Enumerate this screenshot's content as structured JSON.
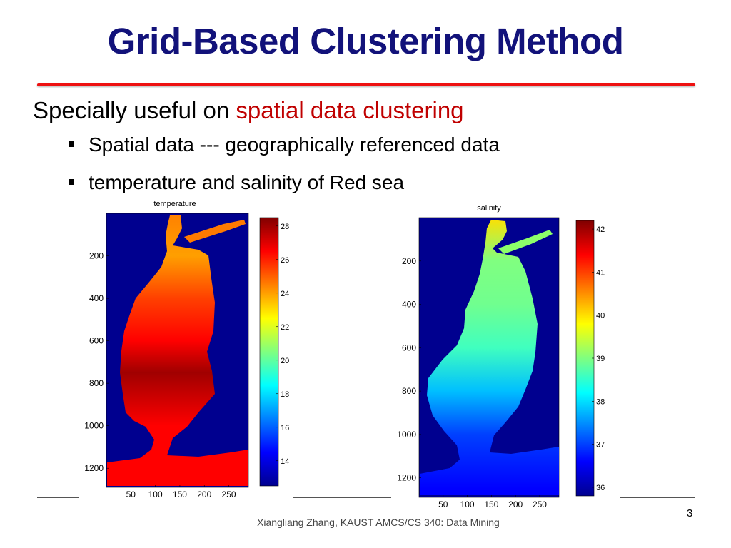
{
  "slide": {
    "title": "Grid-Based Clustering Method",
    "lead_plain": "Specially useful on ",
    "lead_highlight": "spatial data clustering",
    "bullets": [
      "Spatial data --- geographically referenced data",
      "temperature and salinity of Red sea"
    ],
    "footer": "Xiangliang Zhang, KAUST AMCS/CS 340: Data Mining",
    "page_number": "3"
  },
  "colors": {
    "title": "#12127a",
    "highlight": "#c00000",
    "rule": "#ee1111",
    "map_background": "#00008f"
  },
  "chart_data": [
    {
      "type": "heatmap",
      "title": "temperature",
      "x_ticks": [
        "50",
        "100",
        "150",
        "200",
        "250"
      ],
      "y_ticks": [
        "200",
        "400",
        "600",
        "800",
        "1000",
        "1200"
      ],
      "xlim": [
        0,
        290
      ],
      "ylim": [
        0,
        1290
      ],
      "colorbar": {
        "ticks": [
          "28",
          "26",
          "24",
          "22",
          "20",
          "18",
          "16",
          "14"
        ],
        "range": [
          12.5,
          28.5
        ]
      },
      "profile": [
        {
          "y": 0,
          "value": 24.5
        },
        {
          "y": 200,
          "value": 24.0
        },
        {
          "y": 400,
          "value": 25.5
        },
        {
          "y": 600,
          "value": 26.5
        },
        {
          "y": 750,
          "value": 28.0
        },
        {
          "y": 1000,
          "value": 26.5
        },
        {
          "y": 1250,
          "value": 26.5
        }
      ]
    },
    {
      "type": "heatmap",
      "title": "salinity",
      "x_ticks": [
        "50",
        "100",
        "150",
        "200",
        "250"
      ],
      "y_ticks": [
        "200",
        "400",
        "600",
        "800",
        "1000",
        "1200"
      ],
      "xlim": [
        0,
        290
      ],
      "ylim": [
        0,
        1290
      ],
      "colorbar": {
        "ticks": [
          "42",
          "41",
          "40",
          "39",
          "38",
          "37",
          "36"
        ],
        "range": [
          35.8,
          42.2
        ]
      },
      "profile": [
        {
          "y": 0,
          "value": 40.0
        },
        {
          "y": 200,
          "value": 39.0
        },
        {
          "y": 400,
          "value": 38.9
        },
        {
          "y": 600,
          "value": 38.6
        },
        {
          "y": 800,
          "value": 37.8
        },
        {
          "y": 1000,
          "value": 37.0
        },
        {
          "y": 1250,
          "value": 36.6
        }
      ]
    }
  ]
}
